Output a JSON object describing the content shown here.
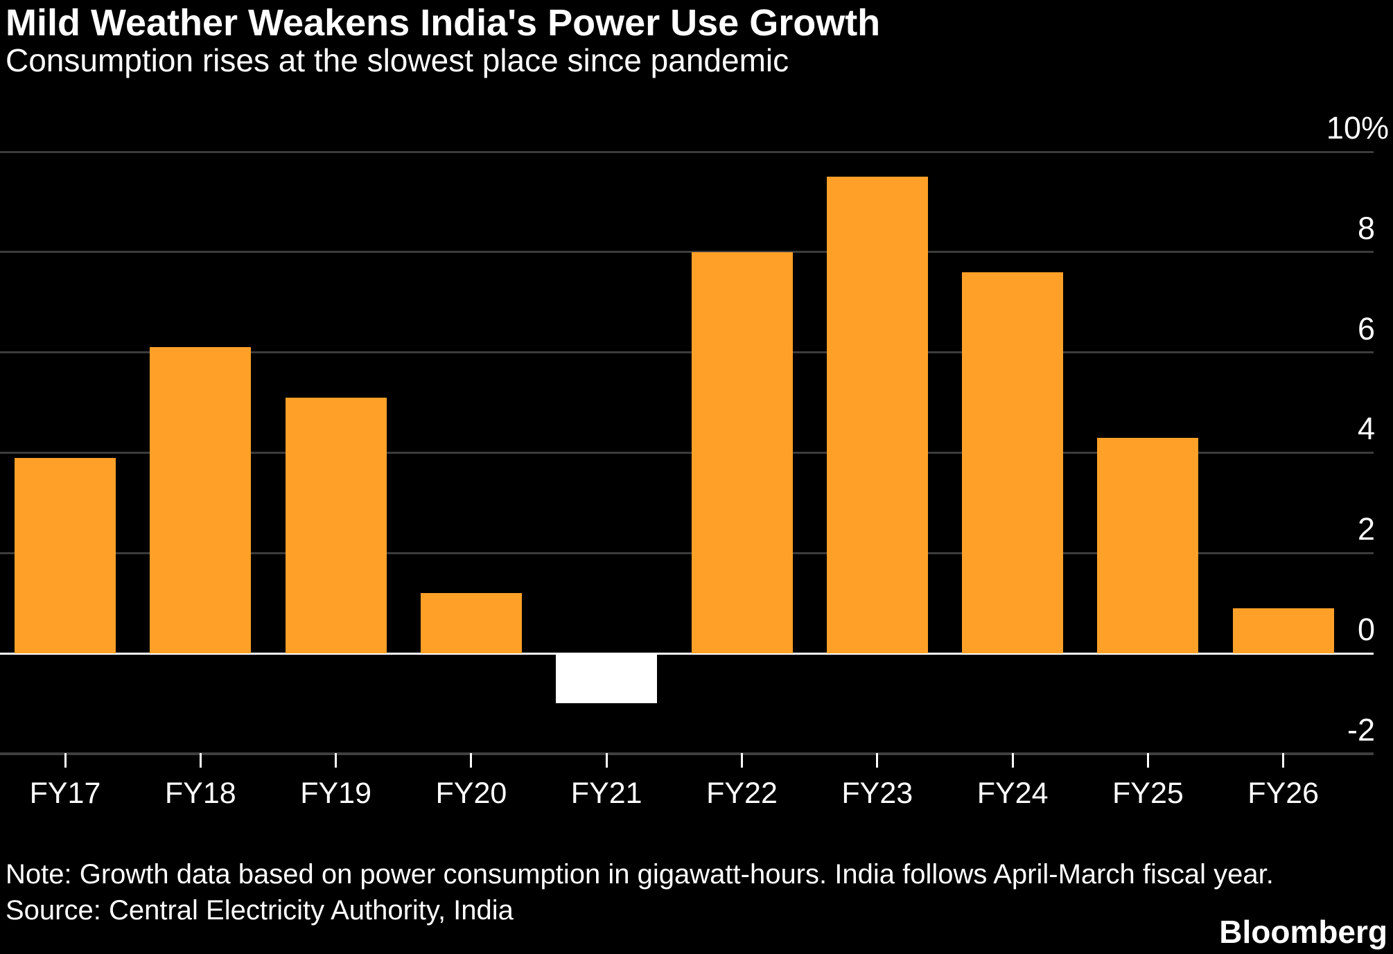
{
  "header": {
    "title": "Mild Weather Weakens India's Power Use Growth",
    "subtitle": "Consumption rises at the slowest place since pandemic"
  },
  "chart_data": {
    "type": "bar",
    "title": "Mild Weather Weakens India's Power Use Growth",
    "subtitle": "Consumption rises at the slowest place since pandemic",
    "categories": [
      "FY17",
      "FY18",
      "FY19",
      "FY20",
      "FY21",
      "FY22",
      "FY23",
      "FY24",
      "FY25",
      "FY26"
    ],
    "values": [
      3.9,
      6.1,
      5.1,
      1.2,
      -1.0,
      8.0,
      9.5,
      7.6,
      4.3,
      0.9
    ],
    "bar_colors": [
      "#FFA028",
      "#FFA028",
      "#FFA028",
      "#FFA028",
      "#FFFFFF",
      "#FFA028",
      "#FFA028",
      "#FFA028",
      "#FFA028",
      "#FFA028"
    ],
    "xlabel": "",
    "ylabel": "",
    "ylim": [
      -2,
      10
    ],
    "grid": true,
    "legend": "none",
    "axis_label_side": "right",
    "yticks": [
      {
        "v": 10,
        "label": "10%"
      },
      {
        "v": 8,
        "label": "8"
      },
      {
        "v": 6,
        "label": "6"
      },
      {
        "v": 4,
        "label": "4"
      },
      {
        "v": 2,
        "label": "2"
      },
      {
        "v": 0,
        "label": "0"
      },
      {
        "v": -2,
        "label": "-2"
      }
    ]
  },
  "footer": {
    "note": "Note: Growth data based on power consumption in gigawatt-hours. India follows April-March fiscal year.",
    "source": "Source: Central Electricity Authority, India",
    "brand": "Bloomberg"
  },
  "colors": {
    "background": "#000000",
    "bar_orange": "#FFA028",
    "bar_highlight_white": "#FFFFFF",
    "gridline": "#3C3C3C",
    "zero_line": "#FFFFFF",
    "text": "#FFFFFF"
  }
}
